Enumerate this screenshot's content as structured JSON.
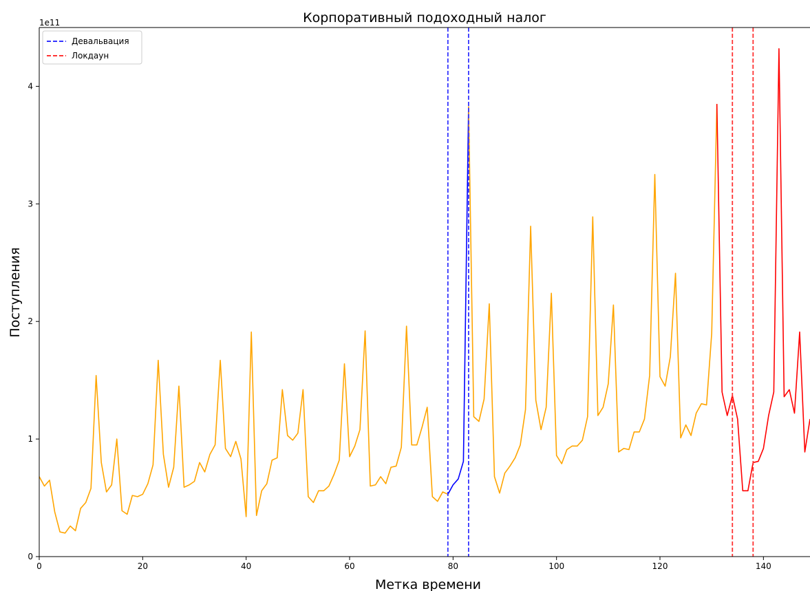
{
  "chart_data": {
    "type": "line",
    "title": "Корпоративный подоходный налог",
    "xlabel": "Метка времени",
    "ylabel": "Поступления",
    "y_offset_label": "1e11",
    "xlim": [
      0,
      149
    ],
    "ylim": [
      0,
      4.5
    ],
    "x_ticks": [
      0,
      20,
      40,
      60,
      80,
      100,
      120,
      140
    ],
    "y_ticks": [
      0,
      1,
      2,
      3,
      4
    ],
    "grid": false,
    "legend_position": "top-left",
    "legend": [
      {
        "label": "Девальвация",
        "color": "#3333ff",
        "style": "dashed"
      },
      {
        "label": "Локдаун",
        "color": "#ff3333",
        "style": "dashed"
      }
    ],
    "vlines": [
      {
        "x": 79,
        "color": "#3333ff",
        "group": "Девальвация"
      },
      {
        "x": 83,
        "color": "#3333ff",
        "group": "Девальвация"
      },
      {
        "x": 134,
        "color": "#ff3333",
        "group": "Локдаун"
      },
      {
        "x": 138,
        "color": "#ff3333",
        "group": "Локдаун"
      }
    ],
    "series_colors": {
      "base": "#ffa500",
      "devaluation": "#0000ff",
      "lockdown": "#ff0000"
    },
    "segments": [
      {
        "color_key": "base",
        "range": [
          0,
          79
        ]
      },
      {
        "color_key": "devaluation",
        "range": [
          79,
          83
        ]
      },
      {
        "color_key": "base",
        "range": [
          83,
          131
        ]
      },
      {
        "color_key": "lockdown",
        "range": [
          131,
          149
        ]
      }
    ],
    "values": [
      0.68,
      0.6,
      0.65,
      0.38,
      0.21,
      0.2,
      0.26,
      0.22,
      0.41,
      0.46,
      0.58,
      1.54,
      0.8,
      0.55,
      0.61,
      1.0,
      0.39,
      0.36,
      0.52,
      0.51,
      0.53,
      0.62,
      0.78,
      1.67,
      0.87,
      0.59,
      0.76,
      1.45,
      0.59,
      0.61,
      0.64,
      0.8,
      0.72,
      0.87,
      0.95,
      1.67,
      0.92,
      0.85,
      0.98,
      0.83,
      0.34,
      1.91,
      0.35,
      0.56,
      0.62,
      0.82,
      0.84,
      1.42,
      1.03,
      0.99,
      1.05,
      1.42,
      0.51,
      0.46,
      0.56,
      0.56,
      0.6,
      0.7,
      0.82,
      1.64,
      0.85,
      0.94,
      1.08,
      1.92,
      0.6,
      0.61,
      0.68,
      0.62,
      0.76,
      0.77,
      0.93,
      1.96,
      0.95,
      0.95,
      1.1,
      1.27,
      0.51,
      0.47,
      0.55,
      0.53,
      0.61,
      0.66,
      0.81,
      3.83,
      1.19,
      1.15,
      1.34,
      2.15,
      0.68,
      0.54,
      0.71,
      0.77,
      0.84,
      0.95,
      1.25,
      2.81,
      1.33,
      1.08,
      1.27,
      2.24,
      0.86,
      0.79,
      0.91,
      0.94,
      0.94,
      0.99,
      1.19,
      2.89,
      1.2,
      1.27,
      1.47,
      2.14,
      0.89,
      0.92,
      0.91,
      1.06,
      1.06,
      1.17,
      1.54,
      3.25,
      1.53,
      1.45,
      1.7,
      2.41,
      1.01,
      1.12,
      1.03,
      1.22,
      1.3,
      1.29,
      1.9,
      3.85,
      1.4,
      1.2,
      1.37,
      1.17,
      0.56,
      0.56,
      0.8,
      0.81,
      0.92,
      1.2,
      1.4,
      4.32,
      1.36,
      1.42,
      1.22,
      1.91,
      0.89,
      1.17,
      1.26
    ]
  }
}
